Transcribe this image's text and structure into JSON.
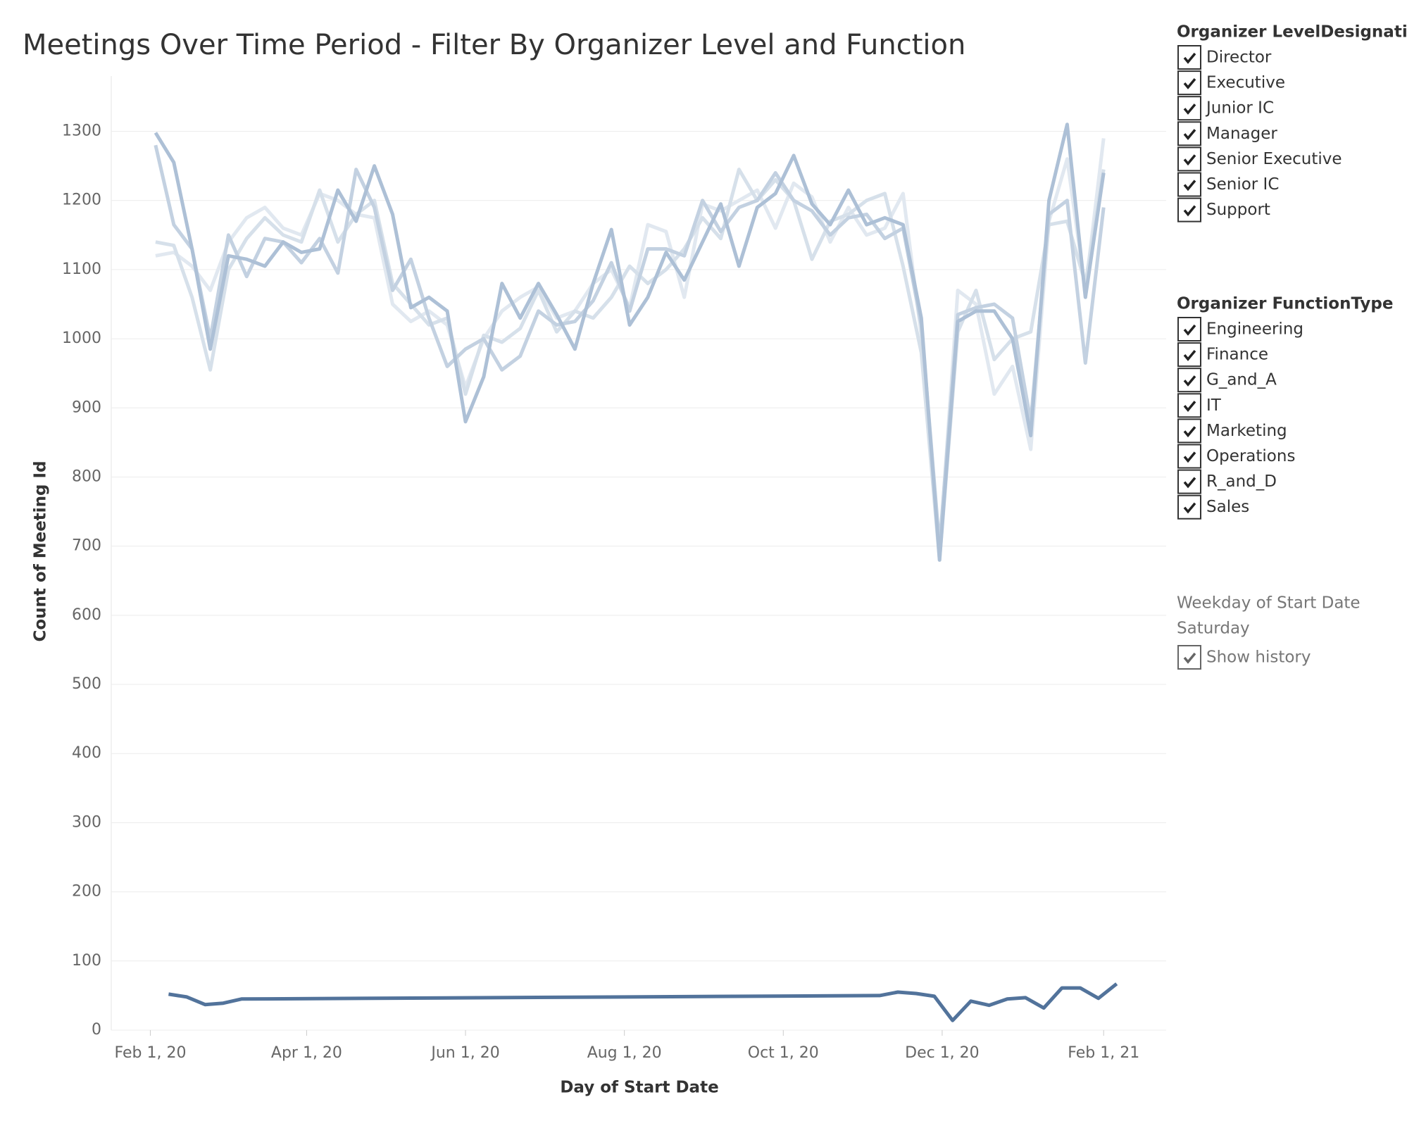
{
  "chart_data": {
    "type": "line",
    "title": "Meetings Over Time Period - Filter By Organizer Level and Function",
    "x_label": "Day of Start Date",
    "y_label": "Count of Meeting Id",
    "xlim": [
      "2020-01-17",
      "2021-02-25"
    ],
    "xticks": [
      {
        "value": "2020-02-01",
        "label": "Feb 1, 20"
      },
      {
        "value": "2020-04-01",
        "label": "Apr 1, 20"
      },
      {
        "value": "2020-06-01",
        "label": "Jun 1, 20"
      },
      {
        "value": "2020-08-01",
        "label": "Aug 1, 20"
      },
      {
        "value": "2020-10-01",
        "label": "Oct 1, 20"
      },
      {
        "value": "2020-12-01",
        "label": "Dec 1, 20"
      },
      {
        "value": "2021-02-01",
        "label": "Feb 1, 21"
      }
    ],
    "ylim": [
      0,
      1380
    ],
    "yticks": [
      0,
      100,
      200,
      300,
      400,
      500,
      600,
      700,
      800,
      900,
      1000,
      1100,
      1200,
      1300
    ],
    "grid": true,
    "x": [
      "2020-02-03",
      "2020-02-10",
      "2020-02-17",
      "2020-02-24",
      "2020-03-02",
      "2020-03-09",
      "2020-03-16",
      "2020-03-23",
      "2020-03-30",
      "2020-04-06",
      "2020-04-13",
      "2020-04-20",
      "2020-04-27",
      "2020-05-04",
      "2020-05-11",
      "2020-05-18",
      "2020-05-25",
      "2020-06-01",
      "2020-06-08",
      "2020-06-15",
      "2020-06-22",
      "2020-06-29",
      "2020-07-06",
      "2020-07-13",
      "2020-07-20",
      "2020-07-27",
      "2020-08-03",
      "2020-08-10",
      "2020-08-17",
      "2020-08-24",
      "2020-08-31",
      "2020-09-07",
      "2020-09-14",
      "2020-09-21",
      "2020-09-28",
      "2020-10-05",
      "2020-10-12",
      "2020-10-19",
      "2020-10-26",
      "2020-11-02",
      "2020-11-09",
      "2020-11-16",
      "2020-11-23",
      "2020-11-30",
      "2020-12-07",
      "2020-12-14",
      "2020-12-21",
      "2020-12-28",
      "2021-01-04",
      "2021-01-11",
      "2021-01-18",
      "2021-01-25",
      "2021-02-01"
    ],
    "series": [
      {
        "color": "#e1e8f0",
        "values": [
          1120,
          1125,
          1105,
          1070,
          1140,
          1175,
          1190,
          1160,
          1150,
          1210,
          1200,
          1180,
          1175,
          1050,
          1025,
          1040,
          1020,
          930,
          1000,
          1040,
          1060,
          1075,
          1030,
          1040,
          1080,
          1100,
          1045,
          1165,
          1155,
          1060,
          1195,
          1185,
          1200,
          1215,
          1160,
          1225,
          1205,
          1140,
          1190,
          1150,
          1160,
          1210,
          1005,
          690,
          1070,
          1050,
          920,
          960,
          840,
          1170,
          1260,
          1070,
          1290
        ]
      },
      {
        "color": "#d6e0ea",
        "values": [
          1140,
          1135,
          1060,
          955,
          1100,
          1145,
          1175,
          1150,
          1140,
          1215,
          1140,
          1180,
          1200,
          1080,
          1050,
          1020,
          1030,
          920,
          1005,
          995,
          1015,
          1070,
          1010,
          1040,
          1030,
          1060,
          1105,
          1080,
          1100,
          1130,
          1175,
          1145,
          1245,
          1200,
          1230,
          1200,
          1115,
          1170,
          1180,
          1200,
          1210,
          1105,
          980,
          680,
          1010,
          1070,
          970,
          1000,
          1010,
          1165,
          1170,
          1080,
          1245
        ]
      },
      {
        "color": "#c3d1e1",
        "values": [
          1280,
          1165,
          1130,
          1000,
          1150,
          1090,
          1145,
          1140,
          1110,
          1145,
          1095,
          1245,
          1190,
          1070,
          1115,
          1030,
          960,
          985,
          1000,
          955,
          975,
          1040,
          1020,
          1025,
          1055,
          1110,
          1040,
          1130,
          1130,
          1120,
          1200,
          1155,
          1190,
          1200,
          1240,
          1200,
          1185,
          1150,
          1175,
          1180,
          1145,
          1160,
          1020,
          700,
          1035,
          1045,
          1050,
          1030,
          880,
          1180,
          1200,
          965,
          1190
        ]
      },
      {
        "color": "#adc0d6",
        "values": [
          1298,
          1255,
          1130,
          985,
          1120,
          1115,
          1105,
          1140,
          1125,
          1130,
          1215,
          1170,
          1250,
          1180,
          1045,
          1060,
          1040,
          880,
          945,
          1080,
          1030,
          1080,
          1035,
          985,
          1080,
          1158,
          1020,
          1060,
          1125,
          1085,
          1140,
          1195,
          1105,
          1190,
          1210,
          1265,
          1195,
          1165,
          1215,
          1165,
          1175,
          1165,
          1030,
          680,
          1025,
          1040,
          1040,
          1000,
          860,
          1200,
          1310,
          1060,
          1240
        ]
      },
      {
        "name": "Saturday",
        "color": "#52739b",
        "bold": true,
        "x": [
          "2020-02-08",
          "2020-02-15",
          "2020-02-22",
          "2020-02-29",
          "2020-03-07",
          "2020-11-07",
          "2020-11-14",
          "2020-11-21",
          "2020-11-28",
          "2020-12-05",
          "2020-12-12",
          "2020-12-19",
          "2020-12-26",
          "2021-01-02",
          "2021-01-09",
          "2021-01-16",
          "2021-01-23",
          "2021-01-30",
          "2021-02-06"
        ],
        "values": [
          52,
          48,
          37,
          39,
          45,
          50,
          55,
          53,
          49,
          14,
          42,
          36,
          45,
          47,
          32,
          61,
          61,
          46,
          67
        ]
      }
    ]
  },
  "filters": [
    {
      "title": "Organizer LevelDesignati..",
      "items": [
        "Director",
        "Executive",
        "Junior IC",
        "Manager",
        "Senior Executive",
        "Senior IC",
        "Support"
      ]
    },
    {
      "title": "Organizer FunctionType",
      "items": [
        "Engineering",
        "Finance",
        "G_and_A",
        "IT",
        "Marketing",
        "Operations",
        "R_and_D",
        "Sales"
      ]
    }
  ],
  "highlight": {
    "title": "Weekday of Start Date",
    "value": "Saturday",
    "toggle": "Show history"
  }
}
